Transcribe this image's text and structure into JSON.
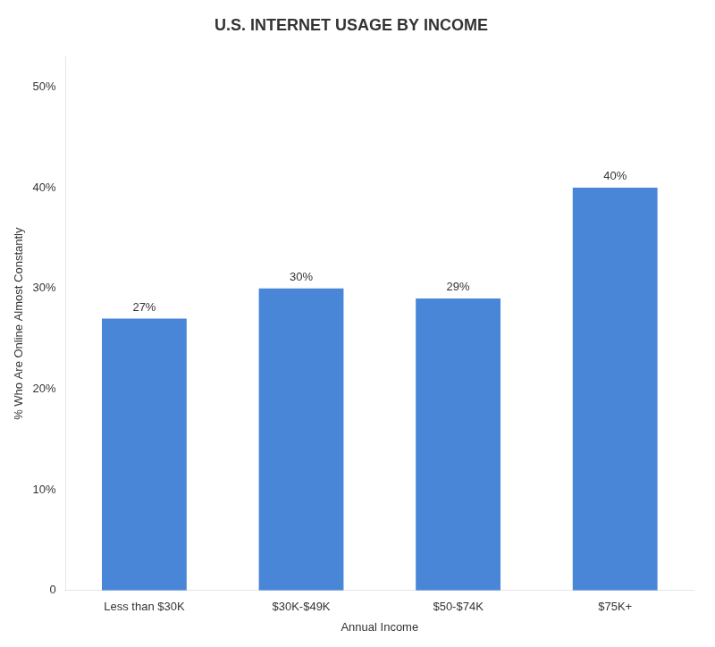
{
  "chart_data": {
    "type": "bar",
    "title": "U.S. INTERNET USAGE BY INCOME",
    "categories": [
      "Less than $30K",
      "$30K-$49K",
      "$50-$74K",
      "$75K+"
    ],
    "values": [
      27,
      30,
      29,
      40
    ],
    "value_labels": [
      "27%",
      "30%",
      "29%",
      "40%"
    ],
    "data_labels": true,
    "color": "#4a86d8",
    "xlabel": "Annual Income",
    "ylabel": "% Who Are Online Almost Constantly",
    "ylim": [
      0,
      53
    ],
    "yticks": [
      0,
      {
        "value": 10,
        "label": "10%"
      },
      {
        "value": 20,
        "label": "20%"
      },
      {
        "value": 30,
        "label": "30%"
      },
      {
        "value": 40,
        "label": "40%"
      },
      {
        "value": 50,
        "label": "50%"
      }
    ],
    "grid": false
  }
}
